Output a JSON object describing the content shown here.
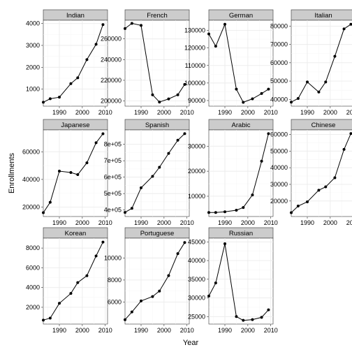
{
  "chart_data": {
    "type": "line",
    "xlabel": "Year",
    "ylabel": "Enrollments",
    "xlim": [
      1983,
      2011
    ],
    "x": [
      1983,
      1986,
      1990,
      1995,
      1998,
      2002,
      2006,
      2009
    ],
    "grid": true,
    "scales": "free_y",
    "panels": [
      {
        "name": "Indian",
        "values": [
          400,
          560,
          630,
          1250,
          1520,
          2350,
          3050,
          3950
        ],
        "yticks": [
          1000,
          2000,
          3000,
          4000
        ],
        "ylim": [
          220,
          4150
        ],
        "ytick_labels": [
          "1000",
          "2000",
          "3000",
          "4000"
        ]
      },
      {
        "name": "French",
        "values": [
          270000,
          275000,
          273000,
          206000,
          199000,
          202000,
          206000,
          216000
        ],
        "yticks": [
          200000,
          220000,
          240000,
          260000
        ],
        "ylim": [
          195000,
          278000
        ],
        "ytick_labels": [
          "200000",
          "220000",
          "240000",
          "260000"
        ]
      },
      {
        "name": "German",
        "values": [
          128000,
          121000,
          133500,
          96500,
          89000,
          91000,
          94000,
          96500
        ],
        "yticks": [
          90000,
          100000,
          110000,
          120000,
          130000
        ],
        "ylim": [
          86800,
          135800
        ],
        "ytick_labels": [
          "90000",
          "100000",
          "110000",
          "120000",
          "130000"
        ]
      },
      {
        "name": "Italian",
        "values": [
          38500,
          40500,
          49500,
          44000,
          49500,
          63500,
          78500,
          81000
        ],
        "yticks": [
          40000,
          50000,
          60000,
          70000,
          80000
        ],
        "ylim": [
          36300,
          83200
        ],
        "ytick_labels": [
          "40000",
          "50000",
          "60000",
          "70000",
          "80000"
        ]
      },
      {
        "name": "Japanese",
        "values": [
          16000,
          23500,
          46000,
          45000,
          43500,
          52000,
          66500,
          73000
        ],
        "yticks": [
          20000,
          40000,
          60000
        ],
        "ylim": [
          13200,
          75800
        ],
        "ytick_labels": [
          "20000",
          "40000",
          "60000"
        ]
      },
      {
        "name": "Spanish",
        "values": [
          385000,
          410000,
          535000,
          605000,
          660000,
          745000,
          825000,
          865000
        ],
        "yticks": [
          400000,
          500000,
          600000,
          700000,
          800000
        ],
        "ylim": [
          360000,
          888000
        ],
        "ytick_labels": [
          "4e+05",
          "5e+05",
          "6e+05",
          "7e+05",
          "8e+05"
        ]
      },
      {
        "name": "Arabic",
        "values": [
          3500,
          3500,
          3800,
          4400,
          5500,
          10500,
          24000,
          35000
        ],
        "yticks": [
          10000,
          20000,
          30000
        ],
        "ylim": [
          1900,
          36500
        ],
        "ytick_labels": [
          "10000",
          "20000",
          "30000"
        ]
      },
      {
        "name": "Chinese",
        "values": [
          13000,
          17000,
          19500,
          26500,
          28500,
          34000,
          51000,
          60500
        ],
        "yticks": [
          20000,
          30000,
          40000,
          50000,
          60000
        ],
        "ylim": [
          10700,
          62700
        ],
        "ytick_labels": [
          "20000",
          "30000",
          "40000",
          "50000",
          "60000"
        ]
      },
      {
        "name": "Korean",
        "values": [
          700,
          900,
          2400,
          3400,
          4500,
          5200,
          7200,
          8600
        ],
        "yticks": [
          2000,
          4000,
          6000,
          8000
        ],
        "ylim": [
          300,
          9000
        ],
        "ytick_labels": [
          "2000",
          "4000",
          "6000",
          "8000"
        ]
      },
      {
        "name": "Portuguese",
        "values": [
          4400,
          5100,
          6100,
          6500,
          7000,
          8400,
          10400,
          11400
        ],
        "yticks": [
          6000,
          8000,
          10000
        ],
        "ylim": [
          4000,
          11800
        ],
        "ytick_labels": [
          "6000",
          "8000",
          "10000"
        ]
      },
      {
        "name": "Russian",
        "values": [
          30500,
          34000,
          44500,
          25000,
          24000,
          24200,
          24800,
          26800
        ],
        "yticks": [
          25000,
          30000,
          35000,
          40000,
          45000
        ],
        "ylim": [
          23000,
          46000
        ],
        "ytick_labels": [
          "25000",
          "30000",
          "35000",
          "40000",
          "45000"
        ]
      }
    ],
    "xticks": [
      1990,
      2000,
      2010
    ],
    "xtick_labels": [
      "1990",
      "2000",
      "2010"
    ]
  }
}
